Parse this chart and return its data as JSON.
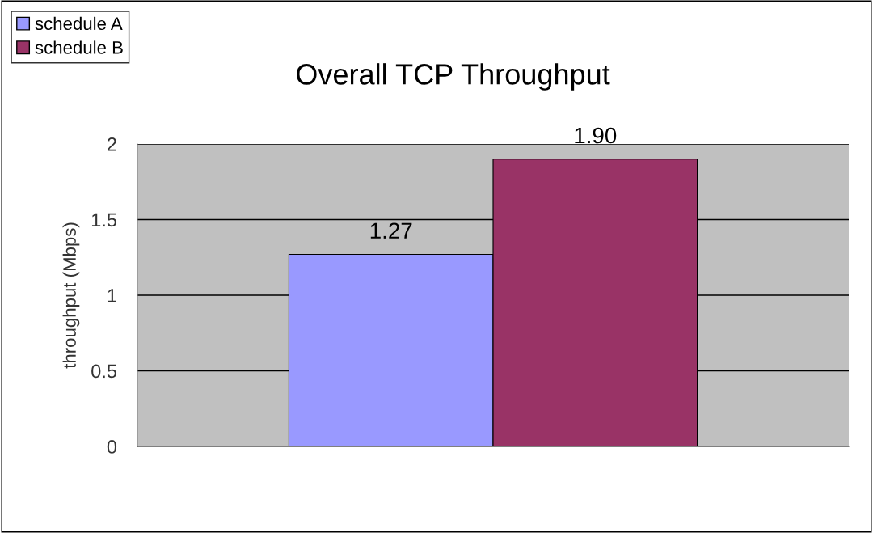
{
  "chart_data": {
    "type": "bar",
    "title": "Overall TCP Throughput",
    "ylabel": "throughput (Mbps)",
    "categories": [
      null
    ],
    "series": [
      {
        "name": "schedule A",
        "color": "#9999ff",
        "values": [
          1.27
        ],
        "value_labels": [
          "1.27"
        ]
      },
      {
        "name": "schedule B",
        "color": "#993366",
        "values": [
          1.9
        ],
        "value_labels": [
          "1.90"
        ]
      }
    ],
    "ylim": [
      0,
      2
    ],
    "yticks": [
      0,
      0.5,
      1,
      1.5,
      2
    ],
    "grid": "y",
    "legend": "top left"
  }
}
